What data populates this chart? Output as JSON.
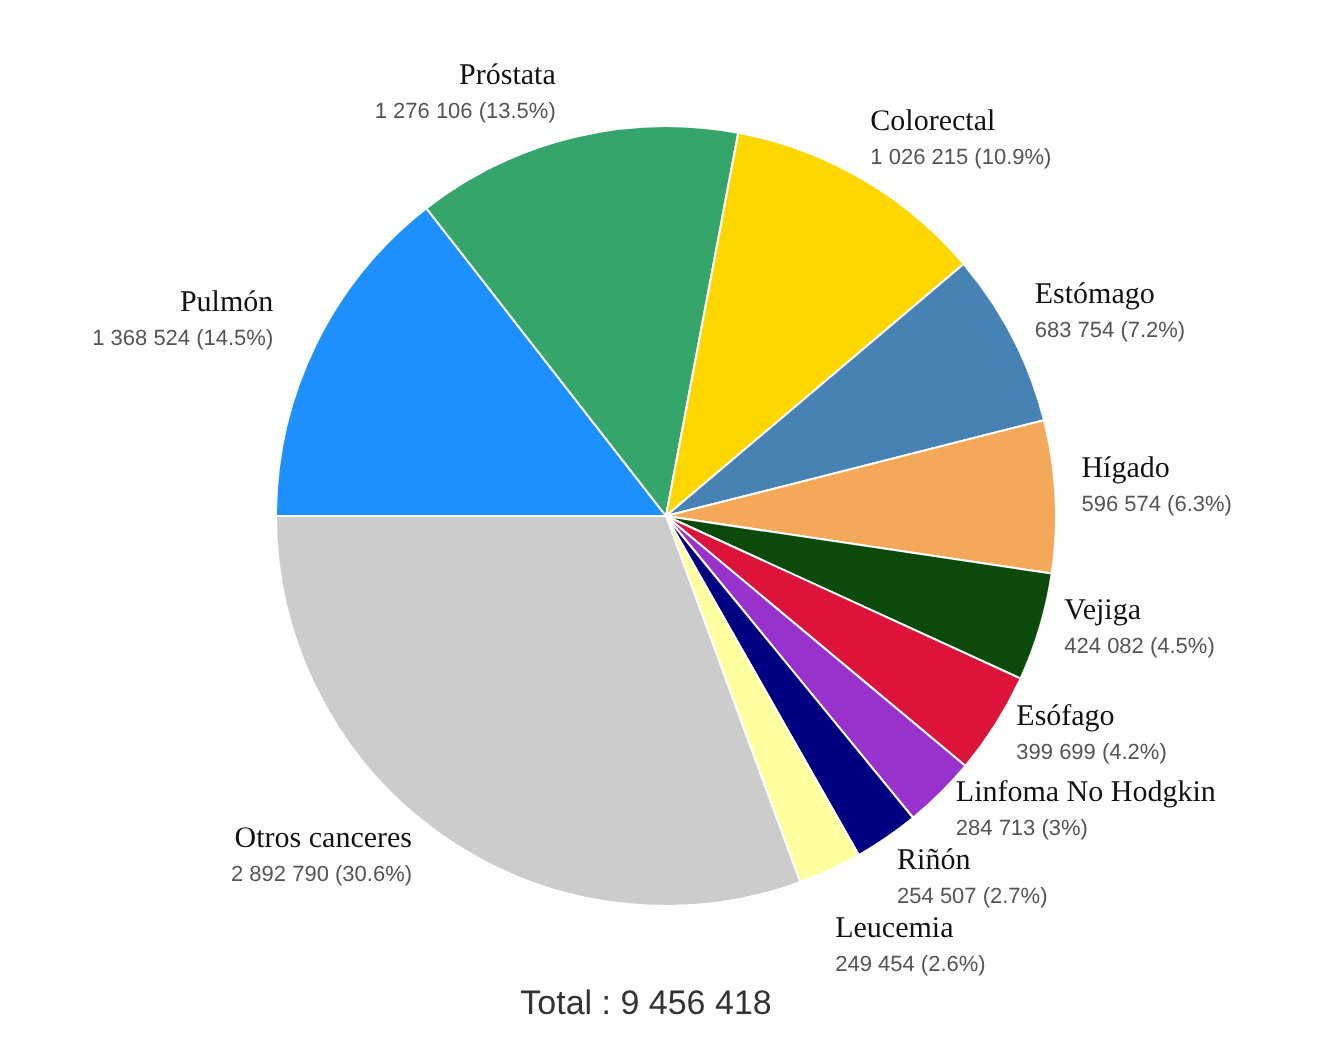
{
  "chart_data": {
    "type": "pie",
    "categories": [
      "Pulmón",
      "Próstata",
      "Colorectal",
      "Estómago",
      "Hígado",
      "Vejiga",
      "Esófago",
      "Linfoma No Hodgkin",
      "Riñón",
      "Leucemia",
      "Otros canceres"
    ],
    "values": [
      1368524,
      1276106,
      1026215,
      683754,
      596574,
      424082,
      399699,
      284713,
      254507,
      249454,
      2892790
    ],
    "colors": [
      "#1e90ff",
      "#35a56b",
      "#ffd700",
      "#4682b4",
      "#f4a85a",
      "#0b4a0b",
      "#dc143c",
      "#9932cc",
      "#000080",
      "#ffffa0",
      "#cccccc"
    ],
    "value_labels": [
      "1 368 524 (14.5%)",
      "1 276 106 (13.5%)",
      "1 026 215 (10.9%)",
      "683 754 (7.2%)",
      "596 574 (6.3%)",
      "424 082 (4.5%)",
      "399 699 (4.2%)",
      "284 713 (3%)",
      "254 507 (2.7%)",
      "249 454 (2.6%)",
      "2 892 790 (30.6%)"
    ],
    "annotations": [
      "Total : 9 456 418"
    ]
  }
}
